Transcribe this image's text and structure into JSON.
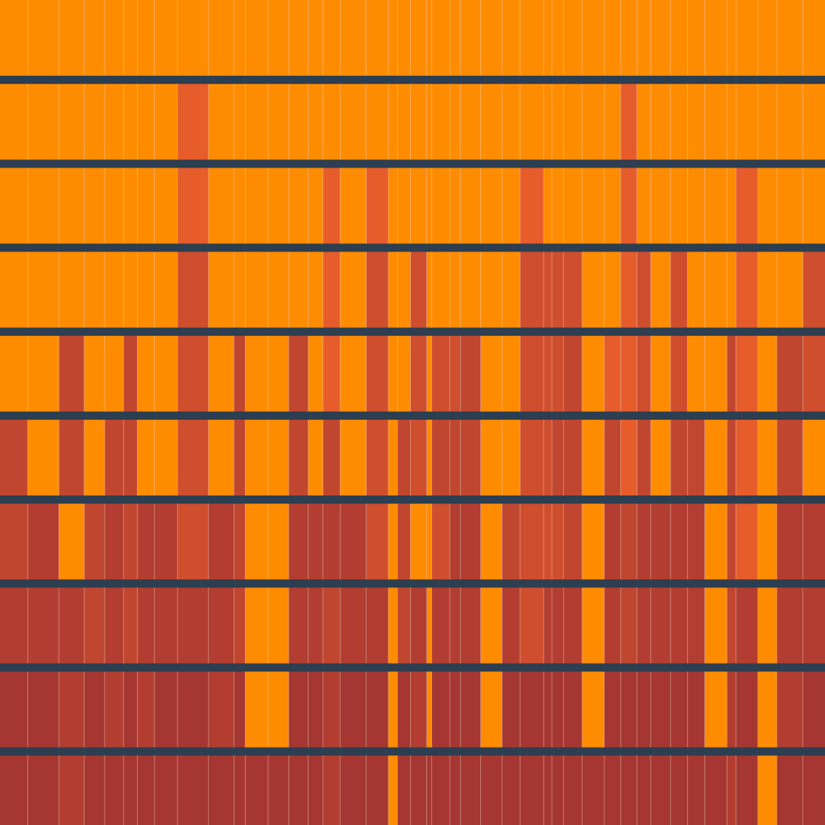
{
  "chart_data": {
    "type": "heatmap",
    "title": "",
    "xlabel": "",
    "ylabel": "",
    "grid": false,
    "legend": "none",
    "palette": [
      "#ff8c00",
      "#e65c2a",
      "#cf4e2d",
      "#c0462f",
      "#b23d30",
      "#a53631"
    ],
    "value_range": [
      0,
      5
    ],
    "background_color": "#2c3e50",
    "cell_border_color": "#f3d9c4",
    "column_widths": [
      34,
      38,
      31,
      25,
      23,
      17,
      21,
      28,
      38,
      31,
      14,
      28,
      25,
      24,
      18,
      21,
      32,
      27,
      11,
      16,
      20,
      6,
      22,
      13,
      25,
      26,
      22,
      29,
      10,
      14,
      23,
      27,
      20,
      20,
      17,
      24,
      21,
      21,
      27,
      11,
      27,
      23,
      32,
      27
    ],
    "rows": [
      [
        0,
        0,
        0,
        0,
        0,
        0,
        0,
        0,
        0,
        0,
        0,
        0,
        0,
        0,
        0,
        0,
        0,
        0,
        0,
        0,
        0,
        0,
        0,
        0,
        0,
        0,
        0,
        0,
        0,
        0,
        0,
        0,
        0,
        0,
        0,
        0,
        0,
        0,
        0,
        0,
        0,
        0,
        0,
        0
      ],
      [
        0,
        0,
        0,
        0,
        0,
        0,
        0,
        0,
        1,
        0,
        0,
        0,
        0,
        0,
        0,
        0,
        0,
        0,
        0,
        0,
        0,
        0,
        0,
        0,
        0,
        0,
        0,
        0,
        0,
        0,
        0,
        0,
        0,
        1,
        0,
        0,
        0,
        0,
        0,
        0,
        0,
        0,
        0,
        0
      ],
      [
        0,
        0,
        0,
        0,
        0,
        0,
        0,
        0,
        1,
        0,
        0,
        0,
        0,
        0,
        0,
        1,
        0,
        1,
        0,
        0,
        0,
        0,
        0,
        0,
        0,
        0,
        0,
        1,
        0,
        0,
        0,
        0,
        0,
        1,
        0,
        0,
        0,
        0,
        0,
        0,
        1,
        0,
        0,
        0
      ],
      [
        0,
        0,
        0,
        0,
        0,
        0,
        0,
        0,
        2,
        0,
        0,
        0,
        0,
        0,
        0,
        1,
        0,
        2,
        0,
        0,
        2,
        0,
        0,
        0,
        0,
        0,
        0,
        2,
        2,
        2,
        2,
        0,
        0,
        1,
        2,
        0,
        2,
        0,
        0,
        0,
        1,
        0,
        0,
        2
      ],
      [
        0,
        0,
        3,
        0,
        0,
        3,
        0,
        0,
        2,
        0,
        3,
        0,
        0,
        3,
        0,
        1,
        0,
        2,
        0,
        0,
        2,
        0,
        2,
        2,
        3,
        0,
        0,
        2,
        2,
        2,
        3,
        0,
        1,
        1,
        2,
        0,
        2,
        0,
        0,
        3,
        1,
        0,
        3,
        2
      ],
      [
        3,
        0,
        3,
        0,
        3,
        3,
        0,
        0,
        2,
        0,
        3,
        0,
        0,
        3,
        0,
        3,
        0,
        2,
        0,
        3,
        2,
        0,
        3,
        3,
        3,
        0,
        0,
        2,
        2,
        3,
        3,
        0,
        3,
        1,
        3,
        0,
        3,
        3,
        0,
        3,
        1,
        0,
        3,
        0
      ],
      [
        3,
        4,
        0,
        3,
        4,
        3,
        4,
        4,
        2,
        4,
        3,
        0,
        0,
        4,
        4,
        4,
        4,
        2,
        0,
        3,
        0,
        0,
        2,
        4,
        4,
        0,
        3,
        2,
        2,
        2,
        3,
        0,
        4,
        3,
        4,
        4,
        4,
        4,
        0,
        3,
        1,
        0,
        4,
        4
      ],
      [
        4,
        4,
        4,
        3,
        4,
        3,
        4,
        4,
        4,
        4,
        3,
        0,
        0,
        4,
        4,
        3,
        4,
        4,
        0,
        3,
        4,
        0,
        4,
        4,
        4,
        0,
        4,
        2,
        4,
        4,
        4,
        0,
        4,
        3,
        4,
        4,
        4,
        4,
        0,
        3,
        4,
        0,
        4,
        4
      ],
      [
        5,
        5,
        4,
        5,
        4,
        5,
        4,
        5,
        5,
        4,
        5,
        0,
        0,
        5,
        5,
        4,
        5,
        5,
        0,
        5,
        4,
        0,
        5,
        5,
        5,
        0,
        5,
        5,
        5,
        5,
        5,
        0,
        5,
        5,
        5,
        5,
        5,
        5,
        0,
        4,
        5,
        0,
        4,
        5
      ],
      [
        5,
        5,
        4,
        5,
        5,
        5,
        5,
        5,
        5,
        5,
        5,
        5,
        5,
        5,
        5,
        4,
        5,
        5,
        0,
        5,
        5,
        5,
        5,
        5,
        5,
        5,
        5,
        5,
        5,
        5,
        5,
        5,
        5,
        5,
        5,
        5,
        5,
        5,
        5,
        4,
        5,
        0,
        5,
        5
      ]
    ]
  }
}
